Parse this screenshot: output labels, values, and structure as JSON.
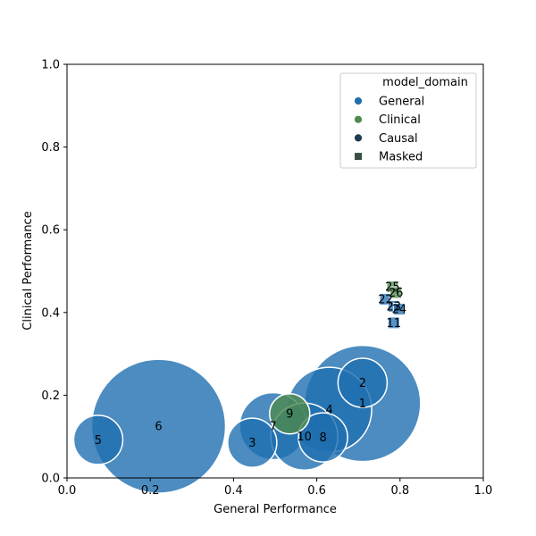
{
  "chart_data": {
    "type": "scatter",
    "xlabel": "General Performance",
    "ylabel": "Clinical Performance",
    "xlim": [
      0.0,
      1.0
    ],
    "ylim": [
      0.0,
      1.0
    ],
    "x_ticks": [
      "0.0",
      "0.2",
      "0.4",
      "0.6",
      "0.8",
      "1.0"
    ],
    "y_ticks": [
      "0.0",
      "0.2",
      "0.4",
      "0.6",
      "0.8",
      "1.0"
    ],
    "grid": false,
    "legend": {
      "title": "model_domain",
      "placement": "top-right",
      "entries": [
        {
          "label": "General",
          "color": "#1f6fb0",
          "marker": "circle"
        },
        {
          "label": "Clinical",
          "color": "#4e8a4e",
          "marker": "circle"
        },
        {
          "label": "Causal",
          "color": "#1f3b4d",
          "marker": "circle"
        },
        {
          "label": "Masked",
          "color": "#3a4f44",
          "marker": "square"
        }
      ]
    },
    "points": [
      {
        "label": "1",
        "x": 0.71,
        "y": 0.18,
        "size": 130,
        "domain": "General",
        "marker": "circle"
      },
      {
        "label": "2",
        "x": 0.71,
        "y": 0.23,
        "size": 55,
        "domain": "General",
        "marker": "circle"
      },
      {
        "label": "3",
        "x": 0.445,
        "y": 0.085,
        "size": 55,
        "domain": "General",
        "marker": "circle"
      },
      {
        "label": "4",
        "x": 0.63,
        "y": 0.165,
        "size": 95,
        "domain": "General",
        "marker": "circle"
      },
      {
        "label": "5",
        "x": 0.075,
        "y": 0.092,
        "size": 55,
        "domain": "General",
        "marker": "circle"
      },
      {
        "label": "6",
        "x": 0.22,
        "y": 0.125,
        "size": 150,
        "domain": "General",
        "marker": "circle"
      },
      {
        "label": "7",
        "x": 0.495,
        "y": 0.125,
        "size": 75,
        "domain": "General",
        "marker": "circle"
      },
      {
        "label": "8",
        "x": 0.615,
        "y": 0.098,
        "size": 55,
        "domain": "General",
        "marker": "circle"
      },
      {
        "label": "9",
        "x": 0.535,
        "y": 0.155,
        "size": 45,
        "domain": "Clinical",
        "marker": "circle"
      },
      {
        "label": "10",
        "x": 0.57,
        "y": 0.1,
        "size": 75,
        "domain": "General",
        "marker": "circle"
      },
      {
        "label": "11",
        "x": 0.785,
        "y": 0.375,
        "size": 28,
        "domain": "General",
        "marker": "square"
      },
      {
        "label": "22",
        "x": 0.765,
        "y": 0.432,
        "size": 28,
        "domain": "General",
        "marker": "square"
      },
      {
        "label": "23",
        "x": 0.785,
        "y": 0.415,
        "size": 28,
        "domain": "General",
        "marker": "square"
      },
      {
        "label": "24",
        "x": 0.798,
        "y": 0.408,
        "size": 28,
        "domain": "General",
        "marker": "square"
      },
      {
        "label": "25",
        "x": 0.782,
        "y": 0.462,
        "size": 28,
        "domain": "Clinical",
        "marker": "square"
      },
      {
        "label": "26",
        "x": 0.79,
        "y": 0.448,
        "size": 28,
        "domain": "Clinical",
        "marker": "square"
      }
    ]
  }
}
